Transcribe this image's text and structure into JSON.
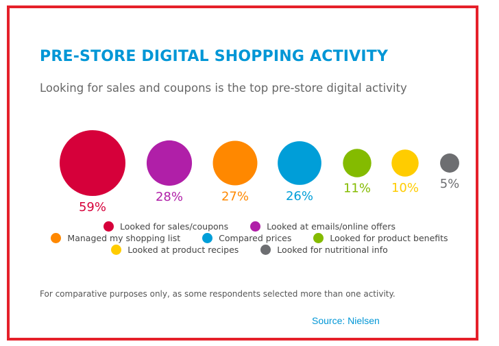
{
  "chart_data": {
    "type": "bubble",
    "title": "PRE-STORE DIGITAL SHOPPING ACTIVITY",
    "subtitle": "Looking for sales and coupons is the top pre-store digital activity",
    "categories": [
      "Looked for sales/coupons",
      "Looked at emails/online offers",
      "Managed my shopping list",
      "Compared prices",
      "Looked for product benefits",
      "Looked at product recipes",
      "Looked for nutritional info"
    ],
    "values": [
      59,
      28,
      27,
      26,
      11,
      10,
      5
    ],
    "labels": [
      "59%",
      "28%",
      "27%",
      "26%",
      "11%",
      "10%",
      "5%"
    ],
    "colors": [
      "#d6003a",
      "#b01fa8",
      "#ff8800",
      "#009ed8",
      "#84bb00",
      "#ffcc00",
      "#6d6e71"
    ],
    "legend_position": "bottom",
    "note": "For comparative purposes only, as some respondents selected more than one activity.",
    "source": "Source: Nielsen"
  },
  "frame_color": "#e5202a"
}
